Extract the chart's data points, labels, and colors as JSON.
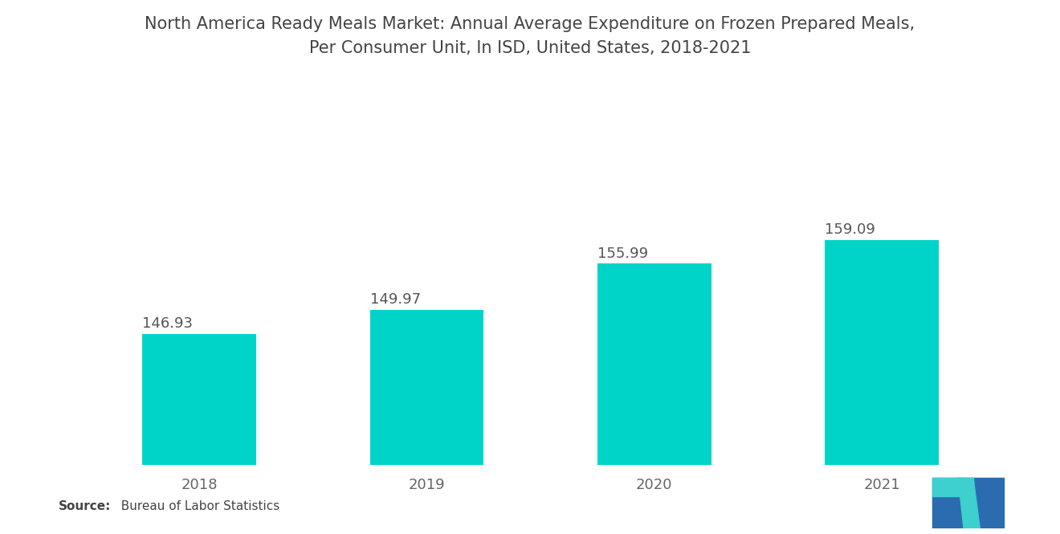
{
  "title_line1": "North America Ready Meals Market: Annual Average Expenditure on Frozen Prepared Meals,",
  "title_line2": "Per Consumer Unit, In ISD, United States, 2018-2021",
  "categories": [
    "2018",
    "2019",
    "2020",
    "2021"
  ],
  "values": [
    146.93,
    149.97,
    155.99,
    159.09
  ],
  "bar_color": "#00D4C8",
  "background_color": "#FFFFFF",
  "title_color": "#444444",
  "label_color": "#555555",
  "tick_color": "#666666",
  "source_bold": "Source:",
  "source_rest": "  Bureau of Labor Statistics",
  "ylim_min": 130,
  "ylim_max": 168,
  "bar_width": 0.5,
  "value_label_fontsize": 13,
  "tick_fontsize": 13,
  "title_fontsize": 15,
  "source_fontsize": 11,
  "logo_blue": "#2B6CB0",
  "logo_teal": "#3ECFCF"
}
